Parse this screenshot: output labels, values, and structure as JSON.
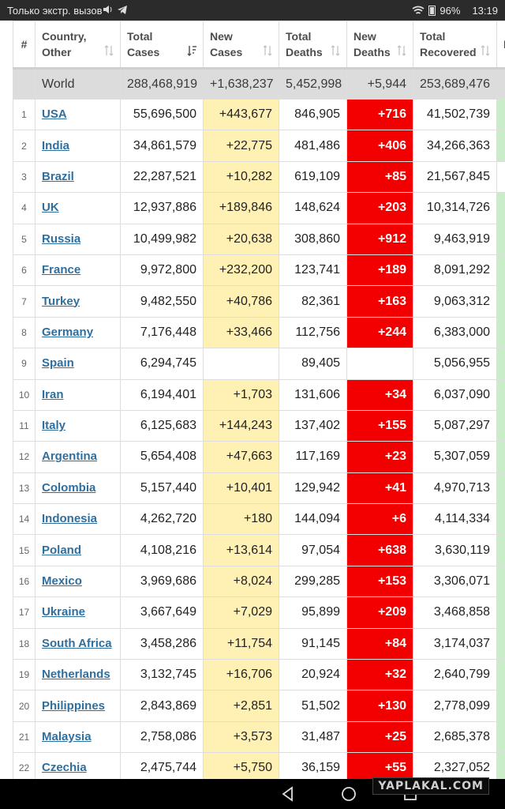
{
  "status_bar": {
    "carrier_text": "Только экстр. вызов",
    "battery": "96%",
    "time": "13:19"
  },
  "table": {
    "headers": {
      "index": "#",
      "country": "Country, Other",
      "total_cases": "Total Cases",
      "new_cases": "New Cases",
      "total_deaths": "Total Deaths",
      "new_deaths": "New Deaths",
      "total_recovered": "Total Recovered",
      "extra": "N"
    },
    "world": {
      "label": "World",
      "total_cases": "288,468,919",
      "new_cases": "+1,638,237",
      "total_deaths": "5,452,998",
      "new_deaths": "+5,944",
      "total_recovered": "253,689,476"
    },
    "rows": [
      {
        "idx": "1",
        "country": "USA",
        "total_cases": "55,696,500",
        "new_cases": "+443,677",
        "total_deaths": "846,905",
        "new_deaths": "+716",
        "total_recovered": "41,502,739"
      },
      {
        "idx": "2",
        "country": "India",
        "total_cases": "34,861,579",
        "new_cases": "+22,775",
        "total_deaths": "481,486",
        "new_deaths": "+406",
        "total_recovered": "34,266,363"
      },
      {
        "idx": "3",
        "country": "Brazil",
        "total_cases": "22,287,521",
        "new_cases": "+10,282",
        "total_deaths": "619,109",
        "new_deaths": "+85",
        "total_recovered": "21,567,845"
      },
      {
        "idx": "4",
        "country": "UK",
        "total_cases": "12,937,886",
        "new_cases": "+189,846",
        "total_deaths": "148,624",
        "new_deaths": "+203",
        "total_recovered": "10,314,726"
      },
      {
        "idx": "5",
        "country": "Russia",
        "total_cases": "10,499,982",
        "new_cases": "+20,638",
        "total_deaths": "308,860",
        "new_deaths": "+912",
        "total_recovered": "9,463,919"
      },
      {
        "idx": "6",
        "country": "France",
        "total_cases": "9,972,800",
        "new_cases": "+232,200",
        "total_deaths": "123,741",
        "new_deaths": "+189",
        "total_recovered": "8,091,292"
      },
      {
        "idx": "7",
        "country": "Turkey",
        "total_cases": "9,482,550",
        "new_cases": "+40,786",
        "total_deaths": "82,361",
        "new_deaths": "+163",
        "total_recovered": "9,063,312"
      },
      {
        "idx": "8",
        "country": "Germany",
        "total_cases": "7,176,448",
        "new_cases": "+33,466",
        "total_deaths": "112,756",
        "new_deaths": "+244",
        "total_recovered": "6,383,000"
      },
      {
        "idx": "9",
        "country": "Spain",
        "total_cases": "6,294,745",
        "new_cases": "",
        "total_deaths": "89,405",
        "new_deaths": "",
        "total_recovered": "5,056,955"
      },
      {
        "idx": "10",
        "country": "Iran",
        "total_cases": "6,194,401",
        "new_cases": "+1,703",
        "total_deaths": "131,606",
        "new_deaths": "+34",
        "total_recovered": "6,037,090"
      },
      {
        "idx": "11",
        "country": "Italy",
        "total_cases": "6,125,683",
        "new_cases": "+144,243",
        "total_deaths": "137,402",
        "new_deaths": "+155",
        "total_recovered": "5,087,297"
      },
      {
        "idx": "12",
        "country": "Argentina",
        "total_cases": "5,654,408",
        "new_cases": "+47,663",
        "total_deaths": "117,169",
        "new_deaths": "+23",
        "total_recovered": "5,307,059"
      },
      {
        "idx": "13",
        "country": "Colombia",
        "total_cases": "5,157,440",
        "new_cases": "+10,401",
        "total_deaths": "129,942",
        "new_deaths": "+41",
        "total_recovered": "4,970,713"
      },
      {
        "idx": "14",
        "country": "Indonesia",
        "total_cases": "4,262,720",
        "new_cases": "+180",
        "total_deaths": "144,094",
        "new_deaths": "+6",
        "total_recovered": "4,114,334"
      },
      {
        "idx": "15",
        "country": "Poland",
        "total_cases": "4,108,216",
        "new_cases": "+13,614",
        "total_deaths": "97,054",
        "new_deaths": "+638",
        "total_recovered": "3,630,119"
      },
      {
        "idx": "16",
        "country": "Mexico",
        "total_cases": "3,969,686",
        "new_cases": "+8,024",
        "total_deaths": "299,285",
        "new_deaths": "+153",
        "total_recovered": "3,306,071"
      },
      {
        "idx": "17",
        "country": "Ukraine",
        "total_cases": "3,667,649",
        "new_cases": "+7,029",
        "total_deaths": "95,899",
        "new_deaths": "+209",
        "total_recovered": "3,468,858"
      },
      {
        "idx": "18",
        "country": "South Africa",
        "total_cases": "3,458,286",
        "new_cases": "+11,754",
        "total_deaths": "91,145",
        "new_deaths": "+84",
        "total_recovered": "3,174,037"
      },
      {
        "idx": "19",
        "country": "Netherlands",
        "total_cases": "3,132,745",
        "new_cases": "+16,706",
        "total_deaths": "20,924",
        "new_deaths": "+32",
        "total_recovered": "2,640,799"
      },
      {
        "idx": "20",
        "country": "Philippines",
        "total_cases": "2,843,869",
        "new_cases": "+2,851",
        "total_deaths": "51,502",
        "new_deaths": "+130",
        "total_recovered": "2,778,099"
      },
      {
        "idx": "21",
        "country": "Malaysia",
        "total_cases": "2,758,086",
        "new_cases": "+3,573",
        "total_deaths": "31,487",
        "new_deaths": "+25",
        "total_recovered": "2,685,378"
      },
      {
        "idx": "22",
        "country": "Czechia",
        "total_cases": "2,475,744",
        "new_cases": "+5,750",
        "total_deaths": "36,159",
        "new_deaths": "+55",
        "total_recovered": "2,327,052"
      }
    ]
  },
  "colors": {
    "new_cases_bg": "#fff0b3",
    "new_deaths_bg": "#f20000",
    "country_link": "#2f6f9f",
    "world_row_bg": "#dcdcdc"
  },
  "watermark": "YAPLAKAL.COM",
  "icons": [
    "volume-icon",
    "telegram-icon",
    "wifi-icon",
    "battery-icon",
    "sort-icon",
    "back-nav-icon",
    "home-nav-icon",
    "recents-nav-icon"
  ]
}
